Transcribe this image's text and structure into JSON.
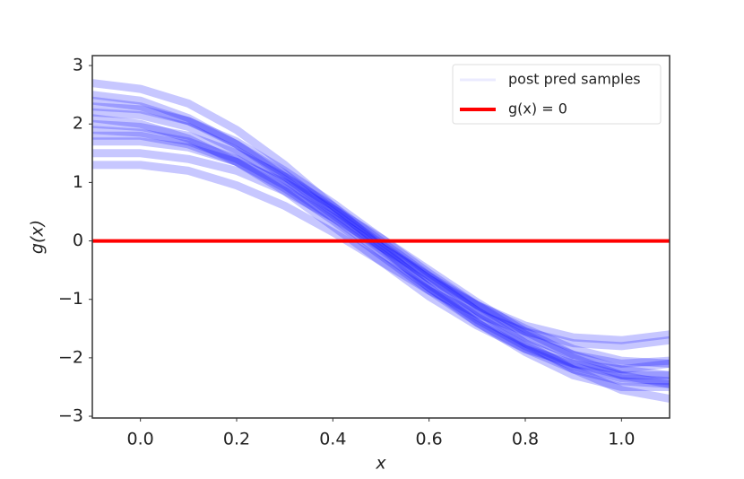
{
  "chart_data": {
    "type": "line",
    "xlabel": "x",
    "ylabel": "g(x)",
    "xlim": [
      -0.1,
      1.1
    ],
    "ylim": [
      -3.03,
      3.17
    ],
    "xticks": [
      {
        "value": 0,
        "label": "0.0"
      },
      {
        "value": 0.2,
        "label": "0.2"
      },
      {
        "value": 0.4,
        "label": "0.4"
      },
      {
        "value": 0.6,
        "label": "0.6"
      },
      {
        "value": 0.8,
        "label": "0.8"
      },
      {
        "value": 1,
        "label": "1.0"
      }
    ],
    "yticks": [
      {
        "value": -3,
        "label": "−3"
      },
      {
        "value": -2,
        "label": "−2"
      },
      {
        "value": -1,
        "label": "−1"
      },
      0,
      1,
      2,
      3
    ],
    "legend": "upper right",
    "series": [
      {
        "name": "post pred samples",
        "color": "#0000ff",
        "x": [
          -0.1,
          0,
          0.1,
          0.2,
          0.3,
          0.4,
          0.5,
          0.6,
          0.7,
          0.8,
          0.9,
          1.0,
          1.1
        ],
        "samples": [
          [
            2.7,
            2.6,
            2.35,
            1.9,
            1.3,
            0.6,
            -0.1,
            -0.8,
            -1.4,
            -1.9,
            -2.3,
            -2.5,
            -2.5
          ],
          [
            1.3,
            1.3,
            1.2,
            0.95,
            0.6,
            0.15,
            -0.35,
            -0.85,
            -1.25,
            -1.55,
            -1.75,
            -1.8,
            -1.7
          ],
          [
            2.2,
            2.15,
            1.95,
            1.55,
            1.05,
            0.45,
            -0.15,
            -0.75,
            -1.3,
            -1.75,
            -2.1,
            -2.3,
            -2.3
          ],
          [
            1.7,
            1.7,
            1.6,
            1.35,
            1.0,
            0.55,
            0.05,
            -0.5,
            -1.05,
            -1.55,
            -1.95,
            -2.2,
            -2.3
          ],
          [
            2.5,
            2.4,
            2.1,
            1.65,
            1.1,
            0.5,
            -0.1,
            -0.65,
            -1.1,
            -1.45,
            -1.65,
            -1.7,
            -1.6
          ],
          [
            1.9,
            1.85,
            1.7,
            1.4,
            0.95,
            0.4,
            -0.2,
            -0.8,
            -1.35,
            -1.8,
            -2.15,
            -2.35,
            -2.4
          ],
          [
            2.0,
            1.95,
            1.8,
            1.5,
            1.1,
            0.6,
            0.0,
            -0.6,
            -1.2,
            -1.75,
            -2.2,
            -2.55,
            -2.7
          ],
          [
            1.5,
            1.5,
            1.4,
            1.2,
            0.85,
            0.4,
            -0.1,
            -0.6,
            -1.1,
            -1.5,
            -1.85,
            -2.05,
            -2.1
          ],
          [
            2.4,
            2.3,
            2.05,
            1.65,
            1.15,
            0.55,
            -0.05,
            -0.65,
            -1.2,
            -1.65,
            -1.95,
            -2.1,
            -2.05
          ],
          [
            1.8,
            1.8,
            1.65,
            1.35,
            0.9,
            0.35,
            -0.25,
            -0.85,
            -1.4,
            -1.85,
            -2.2,
            -2.4,
            -2.45
          ],
          [
            2.1,
            2.0,
            1.75,
            1.35,
            0.85,
            0.25,
            -0.35,
            -0.95,
            -1.45,
            -1.85,
            -2.1,
            -2.2,
            -2.1
          ],
          [
            2.3,
            2.25,
            2.05,
            1.7,
            1.2,
            0.65,
            0.05,
            -0.55,
            -1.1,
            -1.6,
            -2.0,
            -2.3,
            -2.45
          ]
        ]
      },
      {
        "name": "g(x) = 0",
        "color": "#ff0000",
        "x": [
          -0.1,
          1.1
        ],
        "values": [
          0,
          0
        ]
      }
    ]
  }
}
